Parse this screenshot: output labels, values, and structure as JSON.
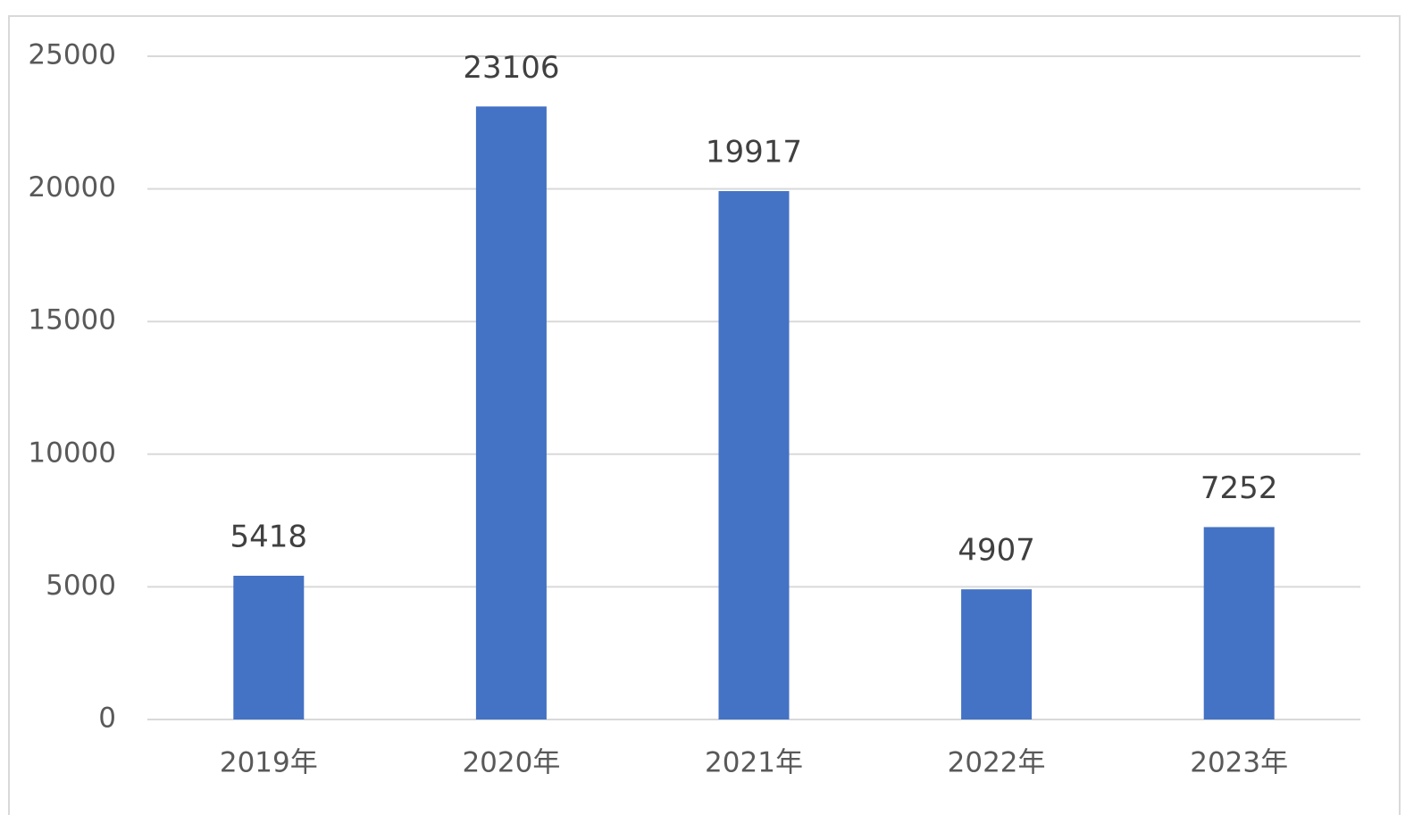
{
  "chart_data": {
    "type": "bar",
    "categories": [
      "2019年",
      "2020年",
      "2021年",
      "2022年",
      "2023年"
    ],
    "values": [
      5418,
      23106,
      19917,
      4907,
      7252
    ],
    "color": "#4472c4",
    "ylim": [
      0,
      25000
    ],
    "yticks": [
      0,
      5000,
      10000,
      15000,
      20000,
      25000
    ],
    "grid": true
  }
}
